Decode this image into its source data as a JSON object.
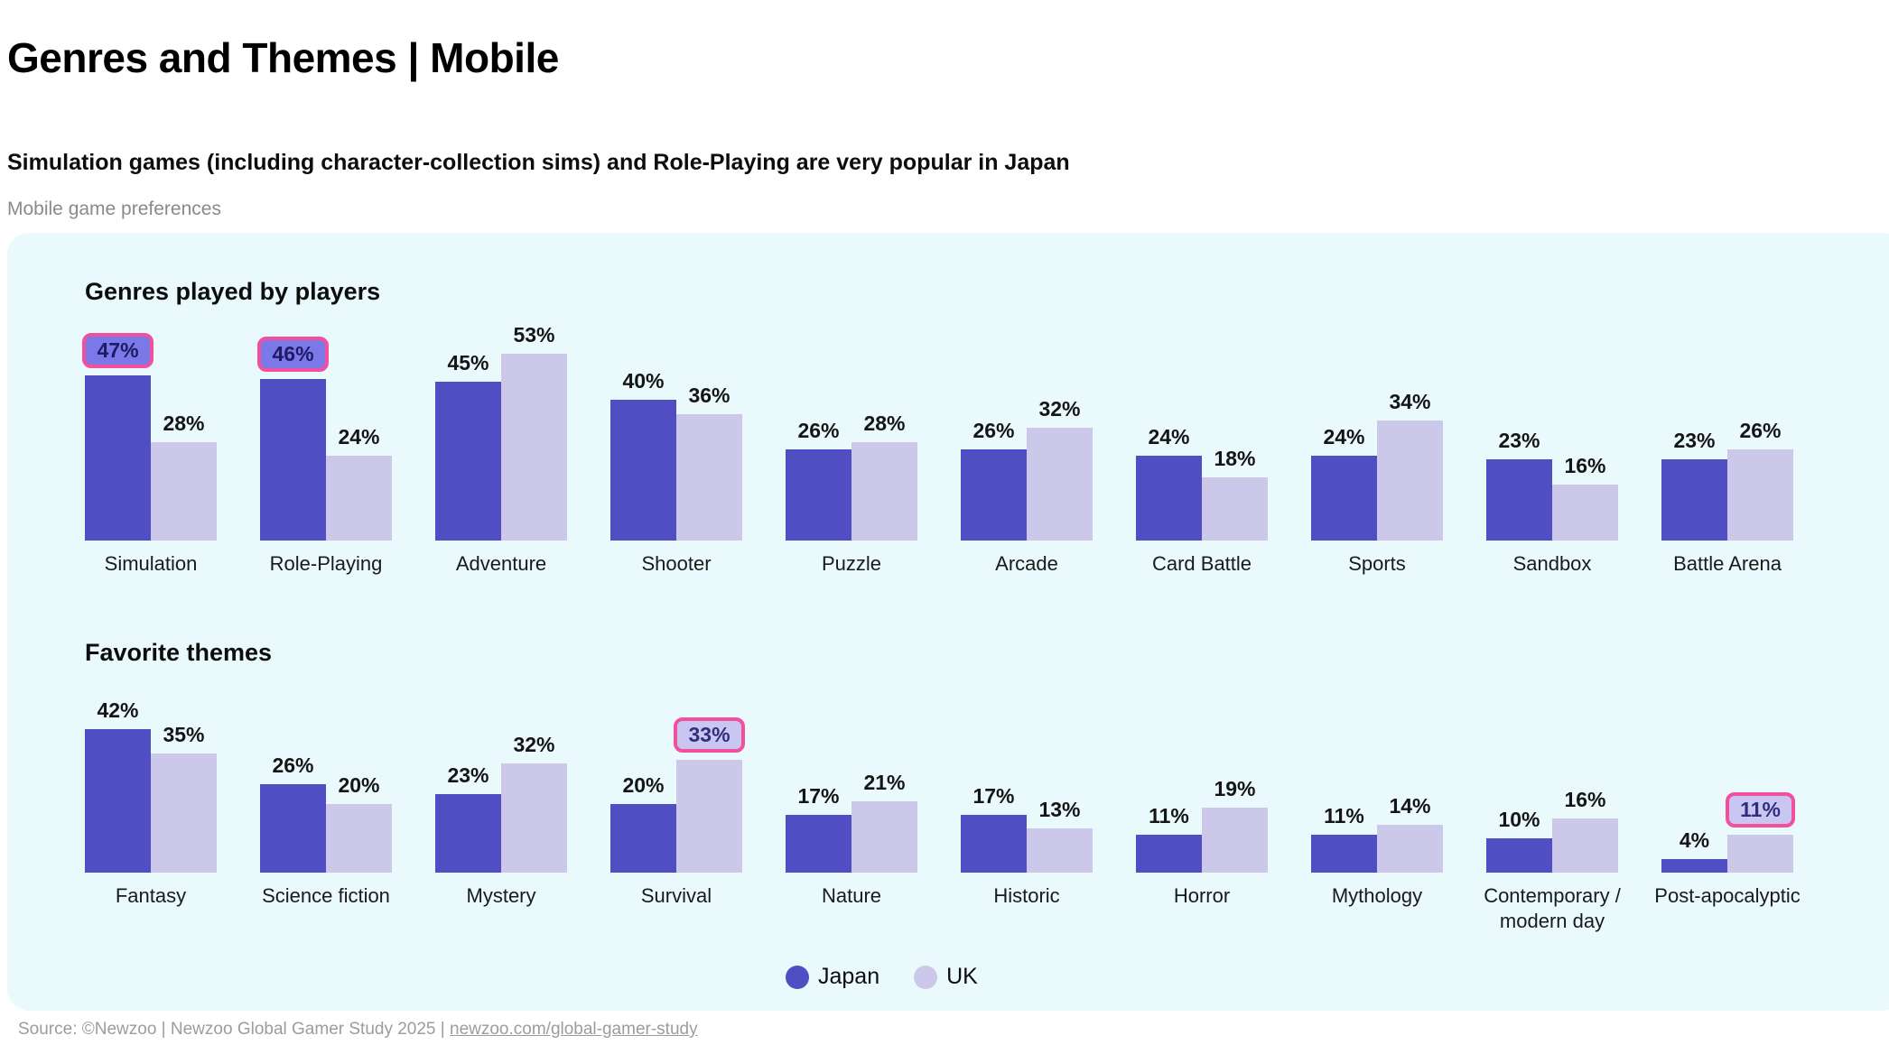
{
  "header": {
    "title": "Genres and Themes | Mobile",
    "subtitle": "Simulation games (including character-collection sims) and Role-Playing are very popular in Japan",
    "kicker": "Mobile game preferences"
  },
  "colors": {
    "japan": "#514ec4",
    "uk": "#cbc8ea",
    "panel_bg": "#eaf9fb",
    "badge_border": "#f0509e",
    "badge_fill_japan": "#7b78e8",
    "badge_text_japan": "#1e1a66",
    "badge_fill_uk": "#c9c6f2",
    "badge_text_uk": "#312e7e"
  },
  "chart_data": [
    {
      "type": "bar",
      "title": "Genres played by players",
      "categories": [
        "Simulation",
        "Role-Playing",
        "Adventure",
        "Shooter",
        "Puzzle",
        "Arcade",
        "Card Battle",
        "Sports",
        "Sandbox",
        "Battle Arena"
      ],
      "series": [
        {
          "name": "Japan",
          "values": [
            47,
            46,
            45,
            40,
            26,
            26,
            24,
            24,
            23,
            23
          ]
        },
        {
          "name": "UK",
          "values": [
            28,
            24,
            53,
            36,
            28,
            32,
            18,
            34,
            16,
            26
          ]
        }
      ],
      "value_suffix": "%",
      "ylim": [
        0,
        60
      ],
      "grid": false,
      "legend_position": "bottom",
      "highlights": [
        {
          "category": "Simulation",
          "series": "Japan"
        },
        {
          "category": "Role-Playing",
          "series": "Japan"
        }
      ]
    },
    {
      "type": "bar",
      "title": "Favorite themes",
      "categories": [
        "Fantasy",
        "Science fiction",
        "Mystery",
        "Survival",
        "Nature",
        "Historic",
        "Horror",
        "Mythology",
        "Contemporary /\nmodern day",
        "Post-apocalyptic"
      ],
      "series": [
        {
          "name": "Japan",
          "values": [
            42,
            26,
            23,
            20,
            17,
            17,
            11,
            11,
            10,
            4
          ]
        },
        {
          "name": "UK",
          "values": [
            35,
            20,
            32,
            33,
            21,
            13,
            19,
            14,
            16,
            11
          ]
        }
      ],
      "value_suffix": "%",
      "ylim": [
        0,
        60
      ],
      "grid": false,
      "legend_position": "bottom",
      "highlights": [
        {
          "category": "Survival",
          "series": "UK"
        },
        {
          "category": "Post-apocalyptic",
          "series": "UK"
        }
      ]
    }
  ],
  "legend": {
    "items": [
      {
        "label": "Japan"
      },
      {
        "label": "UK"
      }
    ]
  },
  "footer": {
    "source_text": "Source: ©Newzoo | Newzoo Global Gamer Study 2025 | ",
    "link_text": "newzoo.com/global-gamer-study"
  }
}
